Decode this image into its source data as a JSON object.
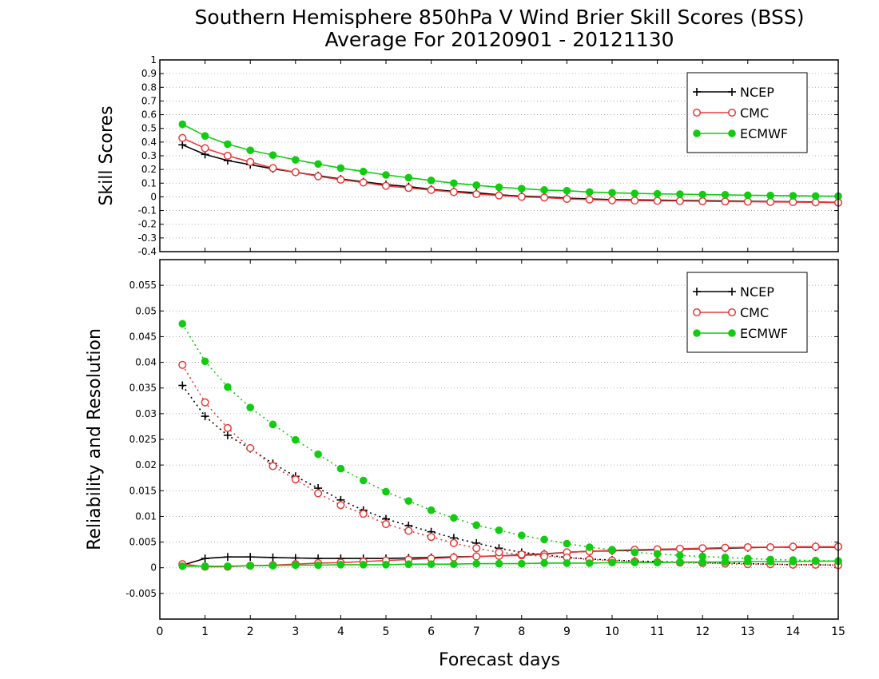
{
  "title_line1": "Southern Hemisphere 850hPa V Wind Brier Skill Scores (BSS)",
  "title_line2": "Average For 20120901 - 20121130",
  "xlabel": "Forecast days",
  "colors": {
    "NCEP": "#000000",
    "CMC": "#e83a3a",
    "ECMWF": "#11cc11"
  },
  "chart_data": [
    {
      "type": "line",
      "ylabel": "Skill Scores",
      "xlim": [
        0,
        15
      ],
      "ylim": [
        -0.4,
        1
      ],
      "xticks": [
        "0",
        "1",
        "2",
        "3",
        "4",
        "5",
        "6",
        "7",
        "8",
        "9",
        "10",
        "11",
        "12",
        "13",
        "14",
        "15"
      ],
      "yticks": [
        "-0.4",
        "-0.3",
        "-0.2",
        "-0.1",
        "0",
        "0.1",
        "0.2",
        "0.3",
        "0.4",
        "0.5",
        "0.6",
        "0.7",
        "0.8",
        "0.9",
        "1"
      ],
      "grid": true,
      "legend": "top-right",
      "x": [
        0.5,
        1,
        1.5,
        2,
        2.5,
        3,
        3.5,
        4,
        4.5,
        5,
        5.5,
        6,
        6.5,
        7,
        7.5,
        8,
        8.5,
        9,
        9.5,
        10,
        10.5,
        11,
        11.5,
        12,
        12.5,
        13,
        13.5,
        14,
        14.5,
        15
      ],
      "series": [
        {
          "name": "NCEP",
          "marker": "plus",
          "line": "solid",
          "values": [
            0.38,
            0.31,
            0.265,
            0.235,
            0.205,
            0.18,
            0.155,
            0.13,
            0.11,
            0.09,
            0.075,
            0.055,
            0.04,
            0.03,
            0.015,
            0.005,
            0.0,
            -0.01,
            -0.015,
            -0.02,
            -0.022,
            -0.024,
            -0.026,
            -0.028,
            -0.03,
            -0.032,
            -0.034,
            -0.036,
            -0.038,
            -0.04
          ]
        },
        {
          "name": "CMC",
          "marker": "open-circle",
          "line": "solid",
          "values": [
            0.43,
            0.355,
            0.3,
            0.255,
            0.21,
            0.18,
            0.15,
            0.125,
            0.105,
            0.08,
            0.065,
            0.05,
            0.035,
            0.02,
            0.01,
            0.0,
            -0.005,
            -0.015,
            -0.02,
            -0.025,
            -0.027,
            -0.029,
            -0.03,
            -0.032,
            -0.034,
            -0.035,
            -0.037,
            -0.038,
            -0.04,
            -0.042
          ]
        },
        {
          "name": "ECMWF",
          "marker": "filled-circle",
          "line": "solid",
          "values": [
            0.53,
            0.445,
            0.385,
            0.34,
            0.305,
            0.27,
            0.24,
            0.21,
            0.185,
            0.16,
            0.14,
            0.12,
            0.1,
            0.085,
            0.07,
            0.06,
            0.05,
            0.045,
            0.035,
            0.03,
            0.025,
            0.022,
            0.02,
            0.017,
            0.015,
            0.012,
            0.01,
            0.008,
            0.006,
            0.005
          ]
        }
      ]
    },
    {
      "type": "line",
      "ylabel": "Reliability and Resolution",
      "xlim": [
        0,
        15
      ],
      "ylim": [
        -0.01,
        0.06
      ],
      "xticks": [
        "0",
        "1",
        "2",
        "3",
        "4",
        "5",
        "6",
        "7",
        "8",
        "9",
        "10",
        "11",
        "12",
        "13",
        "14",
        "15"
      ],
      "yticks": [
        "-0.005",
        "0",
        "0.005",
        "0.01",
        "0.015",
        "0.02",
        "0.025",
        "0.03",
        "0.035",
        "0.04",
        "0.045",
        "0.05",
        "0.055"
      ],
      "grid": true,
      "legend": "top-right",
      "x": [
        0.5,
        1,
        1.5,
        2,
        2.5,
        3,
        3.5,
        4,
        4.5,
        5,
        5.5,
        6,
        6.5,
        7,
        7.5,
        8,
        8.5,
        9,
        9.5,
        10,
        10.5,
        11,
        11.5,
        12,
        12.5,
        13,
        13.5,
        14,
        14.5,
        15
      ],
      "series": [
        {
          "name": "NCEP",
          "marker": "plus",
          "line": "solid",
          "component": "reliability",
          "values": [
            0.0005,
            0.0018,
            0.0021,
            0.0021,
            0.002,
            0.0019,
            0.0018,
            0.0018,
            0.0018,
            0.0018,
            0.0019,
            0.002,
            0.0021,
            0.0022,
            0.0023,
            0.0025,
            0.0027,
            0.003,
            0.0032,
            0.0033,
            0.0034,
            0.0035,
            0.0036,
            0.0037,
            0.0038,
            0.0039,
            0.004,
            0.004,
            0.004,
            0.004
          ]
        },
        {
          "name": "NCEP",
          "marker": "plus",
          "line": "dotted",
          "component": "resolution",
          "values": [
            0.0355,
            0.0295,
            0.0258,
            0.0232,
            0.0203,
            0.0178,
            0.0155,
            0.0132,
            0.0112,
            0.0095,
            0.0082,
            0.007,
            0.0058,
            0.0048,
            0.0038,
            0.003,
            0.0025,
            0.002,
            0.0017,
            0.0015,
            0.0013,
            0.0012,
            0.0011,
            0.001,
            0.0009,
            0.0008,
            0.0007,
            0.0006,
            0.0006,
            0.0005
          ]
        },
        {
          "name": "CMC",
          "marker": "open-circle",
          "line": "solid",
          "component": "reliability",
          "values": [
            0.0007,
            0.0002,
            0.0002,
            0.0004,
            0.0005,
            0.0007,
            0.0009,
            0.001,
            0.0012,
            0.0014,
            0.0016,
            0.0018,
            0.002,
            0.0022,
            0.0023,
            0.0024,
            0.0026,
            0.003,
            0.0032,
            0.0034,
            0.0035,
            0.0036,
            0.0037,
            0.0038,
            0.0039,
            0.004,
            0.004,
            0.0041,
            0.0041,
            0.0041
          ]
        },
        {
          "name": "CMC",
          "marker": "open-circle",
          "line": "dotted",
          "component": "resolution",
          "values": [
            0.0395,
            0.0322,
            0.0272,
            0.0233,
            0.0198,
            0.0172,
            0.0145,
            0.0122,
            0.0105,
            0.0085,
            0.0072,
            0.006,
            0.0048,
            0.0038,
            0.003,
            0.0026,
            0.0022,
            0.002,
            0.0016,
            0.0014,
            0.0012,
            0.0011,
            0.001,
            0.0009,
            0.0008,
            0.0007,
            0.0007,
            0.0006,
            0.0006,
            0.0005
          ]
        },
        {
          "name": "ECMWF",
          "marker": "filled-circle",
          "line": "solid",
          "component": "reliability",
          "values": [
            0.0003,
            0.0003,
            0.0003,
            0.0004,
            0.0004,
            0.0005,
            0.0005,
            0.0006,
            0.0006,
            0.0006,
            0.0007,
            0.0007,
            0.0007,
            0.0008,
            0.0008,
            0.0008,
            0.0009,
            0.0009,
            0.0009,
            0.001,
            0.001,
            0.001,
            0.0011,
            0.0011,
            0.0011,
            0.0012,
            0.0012,
            0.0012,
            0.0013,
            0.0013
          ]
        },
        {
          "name": "ECMWF",
          "marker": "filled-circle",
          "line": "dotted",
          "component": "resolution",
          "values": [
            0.0475,
            0.0402,
            0.0352,
            0.0312,
            0.0279,
            0.0249,
            0.0221,
            0.0193,
            0.017,
            0.0148,
            0.013,
            0.0112,
            0.0097,
            0.0083,
            0.0073,
            0.0063,
            0.0055,
            0.0047,
            0.004,
            0.0035,
            0.003,
            0.0027,
            0.0024,
            0.0022,
            0.002,
            0.0018,
            0.0016,
            0.0015,
            0.0014,
            0.0013
          ]
        }
      ]
    }
  ]
}
